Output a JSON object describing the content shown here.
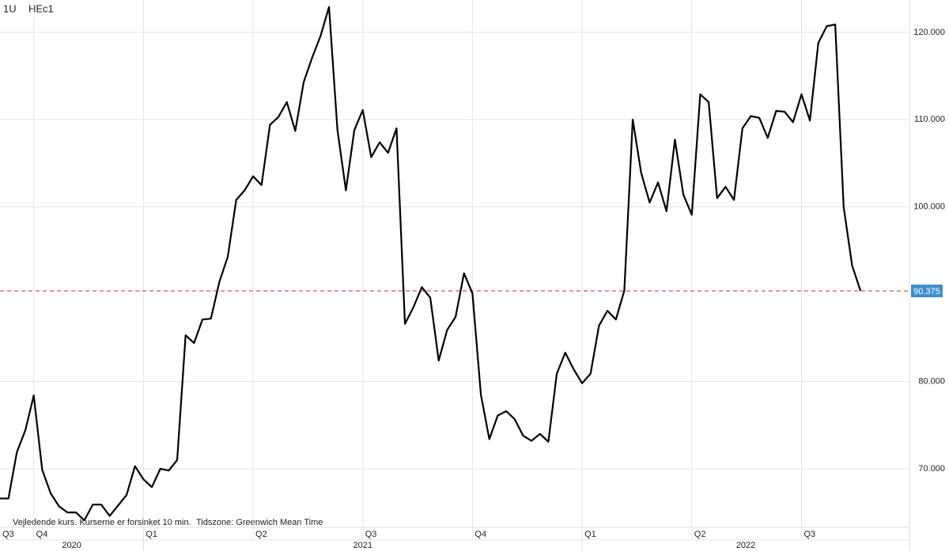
{
  "chart_data": {
    "type": "line",
    "title": "1U",
    "note": [
      "Vejledende kurs. Kurserne er forsinket 10 min.",
      "Tidszone: Greenwich Mean Time"
    ],
    "categories": [
      null,
      null,
      null,
      null,
      null,
      null,
      null,
      null,
      null,
      null,
      null,
      null,
      null,
      null,
      null,
      null,
      null,
      null,
      null,
      null,
      null,
      null,
      null,
      null,
      null,
      null,
      null,
      null,
      null,
      null,
      null,
      null,
      null,
      null,
      null,
      null,
      null,
      null,
      null,
      null,
      null,
      null,
      null,
      null,
      null,
      null,
      null,
      null,
      null,
      null,
      null,
      null,
      null,
      null,
      null,
      null,
      null,
      null,
      null,
      null,
      null,
      null,
      null,
      null,
      null,
      null,
      null,
      null,
      null,
      null,
      null,
      null,
      null,
      null,
      null,
      null,
      null,
      null,
      null,
      null,
      null,
      null,
      null,
      null,
      null,
      null,
      null,
      null,
      null,
      null,
      null,
      null,
      null,
      null,
      null,
      null,
      null,
      null,
      null,
      null,
      null,
      null,
      null
    ],
    "series": [
      {
        "name": "HEc1",
        "color": "#000000",
        "values": [
          66.6,
          66.6,
          71.9,
          74.4,
          78.4,
          69.9,
          67.2,
          65.7,
          65.0,
          65.0,
          64.1,
          65.9,
          65.9,
          64.6,
          65.8,
          67.0,
          70.3,
          68.8,
          67.9,
          70.0,
          69.8,
          71.0,
          85.3,
          84.4,
          87.1,
          87.2,
          91.4,
          94.3,
          100.8,
          101.9,
          103.5,
          102.5,
          109.4,
          110.3,
          112.0,
          108.7,
          114.3,
          117.1,
          119.6,
          122.9,
          108.8,
          101.9,
          108.8,
          111.1,
          105.7,
          107.4,
          106.2,
          109.0,
          86.6,
          88.5,
          90.8,
          89.6,
          82.4,
          85.9,
          87.4,
          92.4,
          90.1,
          78.5,
          73.4,
          76.1,
          76.6,
          75.7,
          73.8,
          73.2,
          74.0,
          73.1,
          80.9,
          83.3,
          81.4,
          79.8,
          80.9,
          86.4,
          88.1,
          87.1,
          90.4,
          110.0,
          103.9,
          100.5,
          102.8,
          99.5,
          107.7,
          101.4,
          99.1,
          112.9,
          112.0,
          101.0,
          102.3,
          100.8,
          109.0,
          110.4,
          110.2,
          107.9,
          111.0,
          110.9,
          109.7,
          112.9,
          109.9,
          118.8,
          120.7,
          120.9,
          100.0,
          93.3,
          90.375
        ]
      }
    ],
    "reference_line": {
      "value": 90.375,
      "color": "#d9534f"
    },
    "xlim": [
      0,
      107.8
    ],
    "xticks": [
      {
        "value": 0,
        "label": "Q3"
      },
      {
        "value": 4,
        "label": "Q4"
      },
      {
        "value": 17,
        "label": "Q1"
      },
      {
        "value": 30,
        "label": "Q2"
      },
      {
        "value": 43,
        "label": "Q3"
      },
      {
        "value": 56,
        "label": "Q4"
      },
      {
        "value": 69,
        "label": "Q1"
      },
      {
        "value": 82,
        "label": "Q2"
      },
      {
        "value": 95,
        "label": "Q3"
      }
    ],
    "year_ticks": [
      {
        "value": 0,
        "label": "2020"
      },
      {
        "value": 17,
        "label": "2021"
      },
      {
        "value": 69,
        "label": "2022"
      }
    ],
    "ylim": [
      63.3,
      123.7
    ],
    "yticks": [
      {
        "value": 70,
        "label": "70.000"
      },
      {
        "value": 80,
        "label": "80.000"
      },
      {
        "value": 100,
        "label": "100.000"
      },
      {
        "value": 110,
        "label": "110.000"
      },
      {
        "value": 120,
        "label": "120.000"
      }
    ],
    "grid": true
  }
}
